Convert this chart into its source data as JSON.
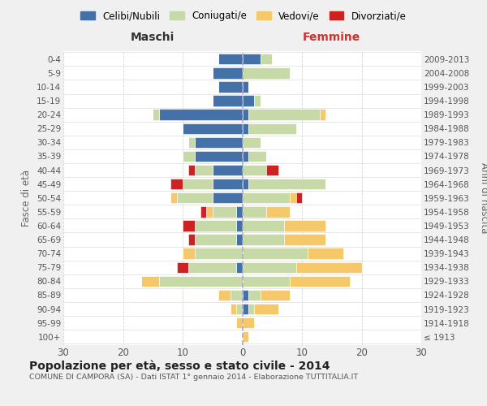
{
  "age_groups": [
    "100+",
    "95-99",
    "90-94",
    "85-89",
    "80-84",
    "75-79",
    "70-74",
    "65-69",
    "60-64",
    "55-59",
    "50-54",
    "45-49",
    "40-44",
    "35-39",
    "30-34",
    "25-29",
    "20-24",
    "15-19",
    "10-14",
    "5-9",
    "0-4"
  ],
  "birth_years": [
    "≤ 1913",
    "1914-1918",
    "1919-1923",
    "1924-1928",
    "1929-1933",
    "1934-1938",
    "1939-1943",
    "1944-1948",
    "1949-1953",
    "1954-1958",
    "1959-1963",
    "1964-1968",
    "1969-1973",
    "1974-1978",
    "1979-1983",
    "1984-1988",
    "1989-1993",
    "1994-1998",
    "1999-2003",
    "2004-2008",
    "2009-2013"
  ],
  "male": {
    "celibe": [
      0,
      0,
      0,
      0,
      0,
      1,
      0,
      1,
      1,
      1,
      5,
      5,
      5,
      8,
      8,
      10,
      14,
      5,
      4,
      5,
      4
    ],
    "coniugato": [
      0,
      0,
      1,
      2,
      14,
      8,
      8,
      7,
      7,
      4,
      6,
      5,
      3,
      2,
      1,
      0,
      1,
      0,
      0,
      0,
      0
    ],
    "vedovo": [
      0,
      1,
      1,
      2,
      3,
      0,
      2,
      0,
      0,
      1,
      1,
      0,
      0,
      0,
      0,
      0,
      0,
      0,
      0,
      0,
      0
    ],
    "divorziato": [
      0,
      0,
      0,
      0,
      0,
      2,
      0,
      1,
      2,
      1,
      0,
      2,
      1,
      0,
      0,
      0,
      0,
      0,
      0,
      0,
      0
    ]
  },
  "female": {
    "nubile": [
      0,
      0,
      1,
      1,
      0,
      0,
      0,
      0,
      0,
      0,
      0,
      1,
      0,
      1,
      0,
      1,
      1,
      2,
      1,
      0,
      3
    ],
    "coniugata": [
      0,
      0,
      1,
      2,
      8,
      9,
      11,
      7,
      7,
      4,
      8,
      13,
      4,
      3,
      3,
      8,
      12,
      1,
      0,
      8,
      2
    ],
    "vedova": [
      1,
      2,
      4,
      5,
      10,
      11,
      6,
      7,
      7,
      4,
      1,
      0,
      0,
      0,
      0,
      0,
      1,
      0,
      0,
      0,
      0
    ],
    "divorziata": [
      0,
      0,
      0,
      0,
      0,
      0,
      0,
      0,
      0,
      0,
      1,
      0,
      2,
      0,
      0,
      0,
      0,
      0,
      0,
      0,
      0
    ]
  },
  "colors": {
    "celibe": "#4472a8",
    "coniugato": "#c8d9a8",
    "vedovo": "#f5c96a",
    "divorziato": "#cc2222"
  },
  "xlim": 30,
  "title": "Popolazione per età, sesso e stato civile - 2014",
  "subtitle": "COMUNE DI CAMPORA (SA) - Dati ISTAT 1° gennaio 2014 - Elaborazione TUTTITALIA.IT",
  "ylabel_left": "Fasce di età",
  "ylabel_right": "Anni di nascita",
  "label_maschi": "Maschi",
  "label_femmine": "Femmine",
  "legend_labels": [
    "Celibi/Nubili",
    "Coniugati/e",
    "Vedovi/e",
    "Divorziati/e"
  ],
  "bg_color": "#f0f0f0",
  "plot_bg_color": "#ffffff"
}
